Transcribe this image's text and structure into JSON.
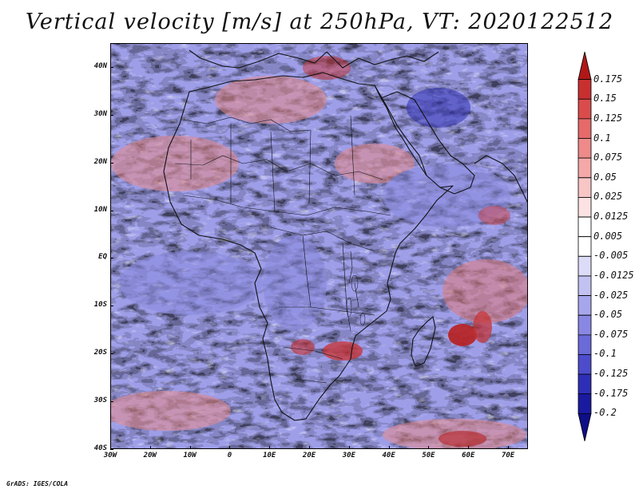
{
  "title": "Vertical velocity [m/s] at 250hPa, VT: 2020122512",
  "credit": "GrADS: IGES/COLA",
  "map": {
    "region": "Africa",
    "lon_range": [
      -30,
      75
    ],
    "lat_range": [
      -40,
      45
    ],
    "lat_labels": [
      "40N",
      "30N",
      "20N",
      "10N",
      "EQ",
      "10S",
      "20S",
      "30S",
      "40S"
    ],
    "lon_labels": [
      "30W",
      "20W",
      "10W",
      "0",
      "10E",
      "20E",
      "30E",
      "40E",
      "50E",
      "60E",
      "70E"
    ],
    "lat_values": [
      40,
      30,
      20,
      10,
      0,
      -10,
      -20,
      -30,
      -40
    ],
    "lon_values": [
      -30,
      -20,
      -10,
      0,
      10,
      20,
      30,
      40,
      50,
      60,
      70
    ]
  },
  "colorbar": {
    "labels": [
      "0.175",
      "0.15",
      "0.125",
      "0.1",
      "0.075",
      "0.05",
      "0.025",
      "0.0125",
      "0.005",
      "-0.005",
      "-0.0125",
      "-0.025",
      "-0.05",
      "-0.075",
      "-0.1",
      "-0.125",
      "-0.175",
      "-0.2"
    ],
    "colors": [
      "#b01818",
      "#c83030",
      "#da4c4c",
      "#e66a6a",
      "#ef8a8a",
      "#f5a8a8",
      "#f9c6c6",
      "#fce2e2",
      "#ffffff",
      "#ffffff",
      "#dcdcf8",
      "#c2c2f2",
      "#a6a6ec",
      "#8888e4",
      "#6a6ad8",
      "#4c4ccc",
      "#2e2eb8",
      "#1a1aa0",
      "#0e0e88"
    ]
  }
}
